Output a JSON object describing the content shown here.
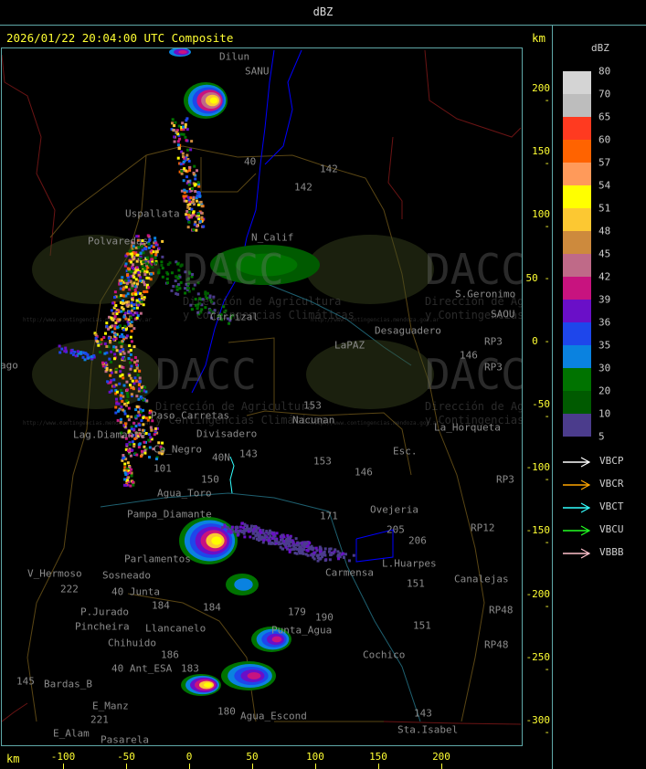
{
  "header": {
    "title": "dBZ"
  },
  "map": {
    "timestamp": "2026/01/22 20:04:00 UTC Composite",
    "axis_unit": "km",
    "y_ticks": [
      "200",
      "150",
      "100",
      "50",
      "0",
      "-50",
      "-100",
      "-150",
      "-200",
      "-250",
      "-300"
    ],
    "x_ticks": [
      "-100",
      "-50",
      "0",
      "50",
      "100",
      "150",
      "200"
    ],
    "place_labels": [
      "Dilun",
      "SANU",
      "40",
      "142",
      "142",
      "Uspallata",
      "N_Calif",
      "Polvaredas",
      "S.Geronimo",
      "SAOU",
      "Carrizal",
      "Desaguadero",
      "LaPAZ",
      "RP3",
      "146",
      "RP3",
      "153",
      "Nacunan",
      "Paso_Carretas",
      "Lag.Diamante",
      "Co_Negro",
      "Divisadero",
      "Esc.",
      "La_Horqueta",
      "40N",
      "101",
      "153",
      "146",
      "150",
      "143",
      "RP3",
      "Agua_Toro",
      "Pampa_Diamante",
      "Parlamentos",
      "Sosneado",
      "V_Hermoso",
      "222",
      "40 Junta",
      "184",
      "184",
      "179",
      "190",
      "Punta_Agua",
      "P.Jurado",
      "Pincheira",
      "Llancanelo",
      "Chihuido",
      "186",
      "40 Ant_ESA",
      "183",
      "145",
      "Bardas_B",
      "E_Manz",
      "221",
      "E_Alam",
      "Pasarela",
      "180",
      "Agua_Escond",
      "143",
      "Sta.Isabel",
      "Cochico",
      "151",
      "151",
      "L.Huarpes",
      "Canalejas",
      "RP48",
      "RP48",
      "RP12",
      "Ovejeria",
      "205",
      "206",
      "Carmensa",
      "171",
      "ago"
    ],
    "watermark": {
      "logo": "DACC",
      "line1": "Dirección de Agricultura",
      "line2": "y Contingencias Climáticas",
      "url": "http://www.contingencias.mendoza.gov.ar"
    }
  },
  "legend": {
    "unit": "dBZ",
    "levels": [
      "80",
      "70",
      "65",
      "60",
      "57",
      "54",
      "51",
      "48",
      "45",
      "42",
      "39",
      "36",
      "35",
      "30",
      "20",
      "10",
      "5"
    ],
    "colors": [
      "#d4d4d4",
      "#bdbdbd",
      "#ff3a20",
      "#ff6300",
      "#ff9a5a",
      "#ffff00",
      "#fcc832",
      "#cd8a3d",
      "#bf6a88",
      "#c8137f",
      "#6a0fc8",
      "#1e46eb",
      "#0a82e0",
      "#007300",
      "#005a00",
      "#4b3c8c"
    ],
    "radars": [
      {
        "name": "VBCP",
        "color": "#ffffff"
      },
      {
        "name": "VBCR",
        "color": "#ffa500"
      },
      {
        "name": "VBCT",
        "color": "#33ffff"
      },
      {
        "name": "VBCU",
        "color": "#22ff22"
      },
      {
        "name": "VBBB",
        "color": "#ffc0cb"
      }
    ]
  }
}
